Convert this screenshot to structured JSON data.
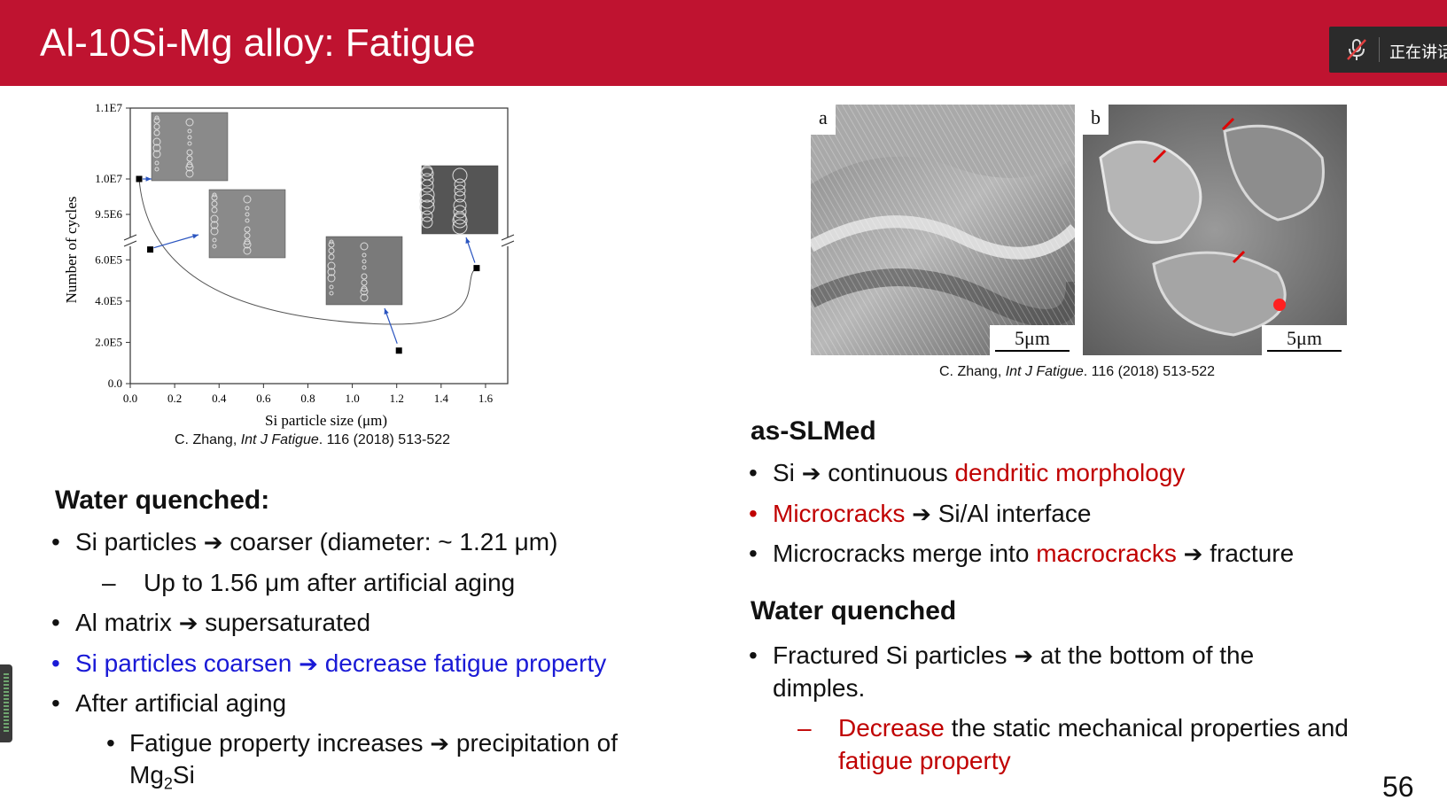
{
  "slide": {
    "title": "Al-10Si-Mg alloy: Fatigue",
    "page_number": "56"
  },
  "overlay": {
    "speaking_label": "正在讲话",
    "mic_icon": "muted-mic-icon"
  },
  "chart_data": {
    "type": "scatter",
    "xlabel": "Si particle size (μm)",
    "ylabel": "Number of cycles",
    "x_ticks": [
      "0.0",
      "0.2",
      "0.4",
      "0.6",
      "0.8",
      "1.0",
      "1.2",
      "1.4",
      "1.6"
    ],
    "y_ticks_lower": [
      "0.0",
      "2.0E5",
      "4.0E5",
      "6.0E5"
    ],
    "y_ticks_upper": [
      "9.5E6",
      "1.0E7",
      "1.1E7"
    ],
    "axis_break": true,
    "points": [
      {
        "x": 0.04,
        "y": 10000000
      },
      {
        "x": 0.09,
        "y": 650000
      },
      {
        "x": 1.21,
        "y": 160000
      },
      {
        "x": 1.56,
        "y": 560000
      }
    ],
    "trend_curve": true,
    "inset_micrographs": 4
  },
  "citations": {
    "prefix": "C. Zhang, ",
    "journal": "Int J Fatigue",
    "suffix": ". 116 (2018) 513-522"
  },
  "sem_images": {
    "a_label": "a",
    "b_label": "b",
    "scale_label": "5μm"
  },
  "left": {
    "heading": "Water quenched:",
    "b1_a": "Si particles",
    "b1_b": "coarser (diameter: ~ 1.21 μm)",
    "dash": "–",
    "sub1": "Up to 1.56 μm after artificial aging",
    "b2_a": "Al matrix",
    "b2_b": "supersaturated",
    "b3_a": "Si particles coarsen",
    "b3_b": "decrease fatigue property",
    "b4": "After artificial aging",
    "b5_a": "Fatigue property increases",
    "b5_b": "precipitation of",
    "b5_mg": "Mg",
    "b5_sub": "2",
    "b5_si": "Si"
  },
  "right": {
    "heading1": "as-SLMed",
    "r1_a": "Si",
    "r1_b": "continuous ",
    "r1_red": "dendritic morphology",
    "r2_red": "Microcracks",
    "r2_b": "Si/Al interface",
    "r3_a": "Microcracks merge into ",
    "r3_red": "macrocracks",
    "r3_b": "fracture",
    "heading2": "Water quenched",
    "r4_a": "Fractured Si particles",
    "r4_b": "at the bottom of the",
    "r4_c": "dimples.",
    "dash": "–",
    "r5_red": "Decrease",
    "r5_b": " the static mechanical properties and",
    "r5_red2": "fatigue property"
  },
  "symbols": {
    "bullet": "•",
    "arrow": "➔"
  },
  "colors": {
    "title_bar": "#bf1330",
    "accent_red": "#c00000",
    "accent_blue": "#1a1ad6"
  }
}
